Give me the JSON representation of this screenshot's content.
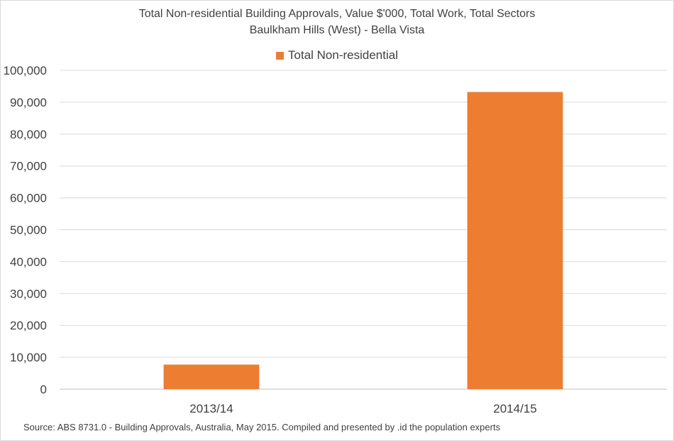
{
  "chart_data": {
    "type": "bar",
    "title": "Total Non-residential Building Approvals, Value $'000, Total Work, Total Sectors",
    "subtitle": "Baulkham Hills (West) - Bella Vista",
    "categories": [
      "2013/14",
      "2014/15"
    ],
    "series": [
      {
        "name": "Total Non-residential",
        "values": [
          7700,
          93200
        ],
        "color": "#ED7D31"
      }
    ],
    "ylim": [
      0,
      100000
    ],
    "yticks": [
      0,
      10000,
      20000,
      30000,
      40000,
      50000,
      60000,
      70000,
      80000,
      90000,
      100000
    ],
    "ytick_labels": [
      "0",
      "10,000",
      "20,000",
      "30,000",
      "40,000",
      "50,000",
      "60,000",
      "70,000",
      "80,000",
      "90,000",
      "100,000"
    ],
    "grid": true,
    "legend": "top-center",
    "source": "Source: ABS 8731.0 - Building Approvals, Australia, May 2015. Compiled and presented by .id the population experts"
  }
}
